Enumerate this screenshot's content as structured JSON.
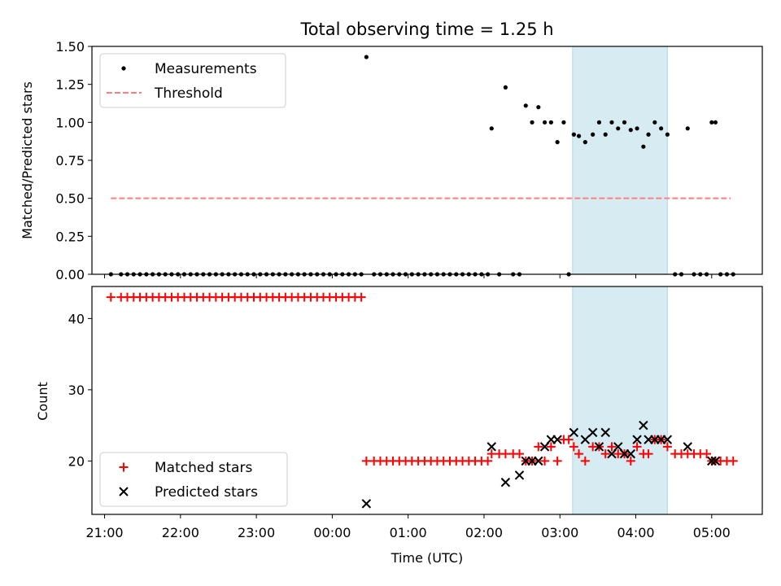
{
  "title": "Total observing time = 1.25 h",
  "colors": {
    "matched": "#ff0000",
    "predicted": "#000000",
    "threshold": "#ff7f7f",
    "highlight": "#add8e6"
  },
  "chart_data": [
    {
      "type": "scatter",
      "ylabel": "Matched/Predicted stars",
      "xlabel": "",
      "xlim": [
        "20:50",
        "05:40"
      ],
      "ylim": [
        0,
        1.5
      ],
      "yticks": [
        "0.00",
        "0.25",
        "0.50",
        "0.75",
        "1.00",
        "1.25",
        "1.50"
      ],
      "legend": {
        "placement": "top-left",
        "entries": [
          "Measurements",
          "Threshold"
        ]
      },
      "highlight_span": [
        "03:10",
        "04:25"
      ],
      "threshold": {
        "name": "Threshold",
        "y": 0.5,
        "x_range": [
          "21:05",
          "05:15"
        ]
      },
      "series": [
        {
          "name": "Measurements",
          "x": [
            "21:05",
            "21:13",
            "21:18",
            "21:23",
            "21:28",
            "21:33",
            "21:38",
            "21:43",
            "21:48",
            "21:53",
            "21:58",
            "22:03",
            "22:08",
            "22:13",
            "22:18",
            "22:23",
            "22:28",
            "22:33",
            "22:38",
            "22:43",
            "22:48",
            "22:53",
            "22:58",
            "23:03",
            "23:08",
            "23:13",
            "23:18",
            "23:23",
            "23:28",
            "23:33",
            "23:38",
            "23:43",
            "23:48",
            "23:53",
            "23:58",
            "00:03",
            "00:08",
            "00:13",
            "00:18",
            "00:23",
            "00:27",
            "00:33",
            "00:38",
            "00:43",
            "00:48",
            "00:53",
            "00:58",
            "01:03",
            "01:08",
            "01:13",
            "01:18",
            "01:23",
            "01:28",
            "01:33",
            "01:38",
            "01:43",
            "01:48",
            "01:53",
            "01:58",
            "02:03",
            "02:06",
            "02:12",
            "02:17",
            "02:23",
            "02:28",
            "02:33",
            "02:38",
            "02:43",
            "02:48",
            "02:53",
            "02:58",
            "03:03",
            "03:07",
            "03:11",
            "03:15",
            "03:20",
            "03:26",
            "03:31",
            "03:36",
            "03:41",
            "03:46",
            "03:51",
            "03:56",
            "04:01",
            "04:06",
            "04:10",
            "04:15",
            "04:20",
            "04:25",
            "04:31",
            "04:36",
            "04:41",
            "04:46",
            "04:51",
            "04:56",
            "05:00",
            "05:03",
            "05:07",
            "05:12",
            "05:17"
          ],
          "y": [
            0,
            0,
            0,
            0,
            0,
            0,
            0,
            0,
            0,
            0,
            0,
            0,
            0,
            0,
            0,
            0,
            0,
            0,
            0,
            0,
            0,
            0,
            0,
            0,
            0,
            0,
            0,
            0,
            0,
            0,
            0,
            0,
            0,
            0,
            0,
            0,
            0,
            0,
            0,
            0,
            1.43,
            0,
            0,
            0,
            0,
            0,
            0,
            0,
            0,
            0,
            0,
            0,
            0,
            0,
            0,
            0,
            0,
            0,
            0,
            0,
            0.96,
            0,
            1.23,
            0,
            0,
            1.11,
            1.0,
            1.1,
            1.0,
            1.0,
            0.87,
            1.0,
            0,
            0.92,
            0.91,
            0.87,
            0.92,
            1.0,
            0.92,
            1.0,
            0.96,
            1.0,
            0.95,
            0.96,
            0.84,
            0.92,
            1.0,
            0.96,
            0.92,
            0,
            0,
            0.96,
            0,
            0,
            0,
            1.0,
            1.0,
            0,
            0,
            0
          ]
        }
      ]
    },
    {
      "type": "scatter",
      "ylabel": "Count",
      "xlabel": "Time (UTC)",
      "xlim": [
        "20:50",
        "05:40"
      ],
      "ylim": [
        12.5,
        44.5
      ],
      "yticks": [
        "20",
        "30",
        "40"
      ],
      "xticks": [
        "21:00",
        "22:00",
        "23:00",
        "00:00",
        "01:00",
        "02:00",
        "03:00",
        "04:00",
        "05:00"
      ],
      "legend": {
        "placement": "bottom-left",
        "entries": [
          "Matched stars",
          "Predicted stars"
        ]
      },
      "highlight_span": [
        "03:10",
        "04:25"
      ],
      "series": [
        {
          "name": "Matched stars",
          "x": [
            "21:05",
            "21:13",
            "21:18",
            "21:23",
            "21:28",
            "21:33",
            "21:38",
            "21:43",
            "21:48",
            "21:53",
            "21:58",
            "22:03",
            "22:08",
            "22:13",
            "22:18",
            "22:23",
            "22:28",
            "22:33",
            "22:38",
            "22:43",
            "22:48",
            "22:53",
            "22:58",
            "23:03",
            "23:08",
            "23:13",
            "23:18",
            "23:23",
            "23:28",
            "23:33",
            "23:38",
            "23:43",
            "23:48",
            "23:53",
            "23:58",
            "00:03",
            "00:08",
            "00:13",
            "00:18",
            "00:23",
            "00:27",
            "00:33",
            "00:38",
            "00:43",
            "00:48",
            "00:53",
            "00:58",
            "01:03",
            "01:08",
            "01:13",
            "01:18",
            "01:23",
            "01:28",
            "01:33",
            "01:38",
            "01:43",
            "01:48",
            "01:53",
            "01:58",
            "02:03",
            "02:06",
            "02:12",
            "02:17",
            "02:23",
            "02:28",
            "02:33",
            "02:38",
            "02:43",
            "02:48",
            "02:53",
            "02:58",
            "03:03",
            "03:07",
            "03:11",
            "03:15",
            "03:20",
            "03:26",
            "03:31",
            "03:36",
            "03:41",
            "03:46",
            "03:51",
            "03:56",
            "04:01",
            "04:06",
            "04:10",
            "04:15",
            "04:20",
            "04:25",
            "04:31",
            "04:36",
            "04:41",
            "04:46",
            "04:51",
            "04:56",
            "05:00",
            "05:03",
            "05:07",
            "05:12",
            "05:17"
          ],
          "y": [
            43,
            43,
            43,
            43,
            43,
            43,
            43,
            43,
            43,
            43,
            43,
            43,
            43,
            43,
            43,
            43,
            43,
            43,
            43,
            43,
            43,
            43,
            43,
            43,
            43,
            43,
            43,
            43,
            43,
            43,
            43,
            43,
            43,
            43,
            43,
            43,
            43,
            43,
            43,
            43,
            20,
            20,
            20,
            20,
            20,
            20,
            20,
            20,
            20,
            20,
            20,
            20,
            20,
            20,
            20,
            20,
            20,
            20,
            20,
            20,
            21,
            21,
            21,
            21,
            21,
            20,
            20,
            22,
            20,
            22,
            20,
            23,
            23,
            22,
            21,
            20,
            22,
            22,
            21,
            22,
            21,
            21,
            20,
            22,
            21,
            21,
            23,
            23,
            22,
            21,
            21,
            21,
            21,
            21,
            21,
            20,
            20,
            20,
            20,
            20
          ]
        },
        {
          "name": "Predicted stars",
          "x": [
            "00:27",
            "02:06",
            "02:17",
            "02:28",
            "02:33",
            "02:38",
            "02:43",
            "02:48",
            "02:53",
            "02:58",
            "03:11",
            "03:20",
            "03:26",
            "03:31",
            "03:36",
            "03:41",
            "03:46",
            "03:51",
            "03:56",
            "04:01",
            "04:06",
            "04:10",
            "04:15",
            "04:20",
            "04:25",
            "04:41",
            "05:00",
            "05:03"
          ],
          "y": [
            14,
            22,
            17,
            18,
            20,
            20,
            20,
            22,
            23,
            23,
            24,
            23,
            24,
            22,
            24,
            21,
            22,
            21,
            21,
            23,
            25,
            23,
            23,
            23,
            23,
            22,
            20,
            20
          ]
        }
      ]
    }
  ]
}
